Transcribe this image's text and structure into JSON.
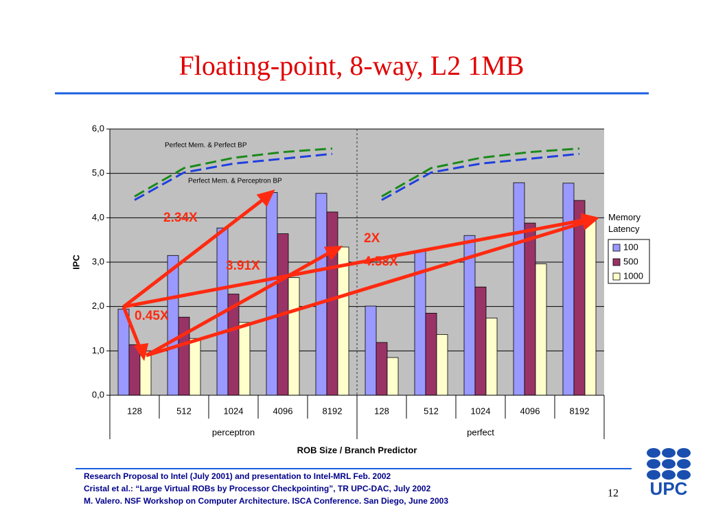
{
  "title": "Floating-point, 8-way, L2 1MB",
  "chart_data": {
    "type": "bar",
    "categories": [
      "128",
      "512",
      "1024",
      "4096",
      "8192",
      "128",
      "512",
      "1024",
      "4096",
      "8192"
    ],
    "groups": [
      "perceptron",
      "perfect"
    ],
    "ylim": [
      0,
      6
    ],
    "yticks": [
      {
        "value": 0,
        "label": "0,0"
      },
      {
        "value": 1,
        "label": "1,0"
      },
      {
        "value": 2,
        "label": "2,0"
      },
      {
        "value": 3,
        "label": "3,0"
      },
      {
        "value": 4,
        "label": "4,0"
      },
      {
        "value": 5,
        "label": "5,0"
      },
      {
        "value": 6,
        "label": "6,0"
      }
    ],
    "grid": true,
    "y_label": "IPC",
    "x_label": "ROB Size / Branch Predictor",
    "legend_title": "Memory Latency",
    "legend_position": "right",
    "series": [
      {
        "name": "100",
        "color": "#9999ff",
        "values": [
          1.94,
          3.15,
          3.77,
          4.57,
          4.55,
          2.01,
          3.25,
          3.6,
          4.79,
          4.78
        ]
      },
      {
        "name": "500",
        "color": "#993366",
        "values": [
          1.14,
          1.76,
          2.28,
          3.64,
          4.13,
          1.19,
          1.85,
          2.44,
          3.88,
          4.39
        ]
      },
      {
        "name": "1000",
        "color": "#ffffcc",
        "values": [
          0.92,
          1.28,
          1.64,
          2.65,
          3.34,
          0.85,
          1.37,
          1.74,
          2.96,
          3.93
        ]
      }
    ],
    "lines": [
      {
        "name": "Perfect Mem. & Perfect BP",
        "color": "#1a8a1a",
        "values": [
          4.48,
          5.12,
          5.35,
          5.48,
          5.56,
          4.48,
          5.12,
          5.35,
          5.48,
          5.56
        ]
      },
      {
        "name": "Perfect Mem. & Perceptron BP",
        "color": "#1f3fe0",
        "values": [
          4.4,
          5.02,
          5.22,
          5.33,
          5.44,
          4.4,
          5.02,
          5.22,
          5.33,
          5.44
        ]
      }
    ],
    "annotations": [
      "2.34X",
      "3.91X",
      "0.45X",
      "2X",
      "4.58X"
    ]
  },
  "footer": [
    "Research Proposal  to Intel (July 2001) and  presentation to Intel-MRL Feb. 2002",
    "Cristal et al.: “Large Virtual ROBs by Processor Checkpointing”, TR UPC-DAC, July 2002",
    "M. Valero. NSF Workshop on Computer Architecture. ISCA Conference. San Diego, June 2003"
  ],
  "page_number": "12",
  "logo": "UPC"
}
